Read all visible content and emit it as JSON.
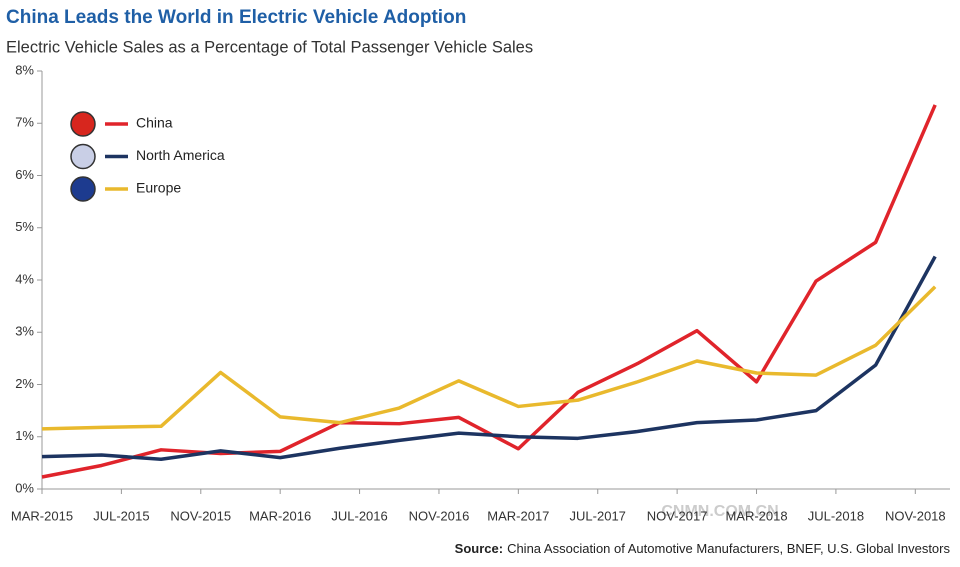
{
  "chart_data": {
    "type": "line",
    "title": "China Leads the World in Electric Vehicle Adoption",
    "subtitle": "Electric Vehicle Sales as a Percentage of Total Passenger Vehicle Sales",
    "x": [
      "2015-03",
      "2015-06",
      "2015-09",
      "2015-12",
      "2016-03",
      "2016-06",
      "2016-09",
      "2016-12",
      "2017-03",
      "2017-06",
      "2017-09",
      "2017-12",
      "2018-03",
      "2018-06",
      "2018-09",
      "2018-12"
    ],
    "series": [
      {
        "name": "China",
        "color": "#e0242b",
        "values": [
          0.23,
          0.45,
          0.75,
          0.68,
          0.72,
          1.27,
          1.25,
          1.37,
          0.77,
          1.85,
          2.4,
          3.03,
          2.05,
          3.98,
          4.72,
          7.35
        ]
      },
      {
        "name": "North America",
        "color": "#1d3461",
        "values": [
          0.62,
          0.65,
          0.57,
          0.73,
          0.6,
          0.78,
          0.93,
          1.07,
          1.0,
          0.97,
          1.1,
          1.27,
          1.32,
          1.5,
          2.37,
          4.45
        ]
      },
      {
        "name": "Europe",
        "color": "#e9b92d",
        "values": [
          1.15,
          1.18,
          1.2,
          2.23,
          1.38,
          1.27,
          1.55,
          2.07,
          1.58,
          1.7,
          2.05,
          2.45,
          2.22,
          2.18,
          2.75,
          3.87
        ]
      }
    ],
    "xlim": [
      "2015-03",
      "2019-01"
    ],
    "xticks": [
      {
        "value": "2015-03",
        "label": "MAR-2015"
      },
      {
        "value": "2015-07",
        "label": "JUL-2015"
      },
      {
        "value": "2015-11",
        "label": "NOV-2015"
      },
      {
        "value": "2016-03",
        "label": "MAR-2016"
      },
      {
        "value": "2016-07",
        "label": "JUL-2016"
      },
      {
        "value": "2016-11",
        "label": "NOV-2016"
      },
      {
        "value": "2017-03",
        "label": "MAR-2017"
      },
      {
        "value": "2017-07",
        "label": "JUL-2017"
      },
      {
        "value": "2017-11",
        "label": "NOV-2017"
      },
      {
        "value": "2018-03",
        "label": "MAR-2018"
      },
      {
        "value": "2018-07",
        "label": "JUL-2018"
      },
      {
        "value": "2018-11",
        "label": "NOV-2018"
      }
    ],
    "ylim": [
      0,
      8
    ],
    "yticks": [
      {
        "value": 0,
        "label": "0%"
      },
      {
        "value": 1,
        "label": "1%"
      },
      {
        "value": 2,
        "label": "2%"
      },
      {
        "value": 3,
        "label": "3%"
      },
      {
        "value": 4,
        "label": "4%"
      },
      {
        "value": 5,
        "label": "5%"
      },
      {
        "value": 6,
        "label": "6%"
      },
      {
        "value": 7,
        "label": "7%"
      },
      {
        "value": 8,
        "label": "8%"
      }
    ],
    "legend": "top-left",
    "source_label": "Source:",
    "source": "China Association of Automotive Manufacturers, BNEF, U.S. Global Investors",
    "watermark": "CNMN.COM.CN"
  }
}
